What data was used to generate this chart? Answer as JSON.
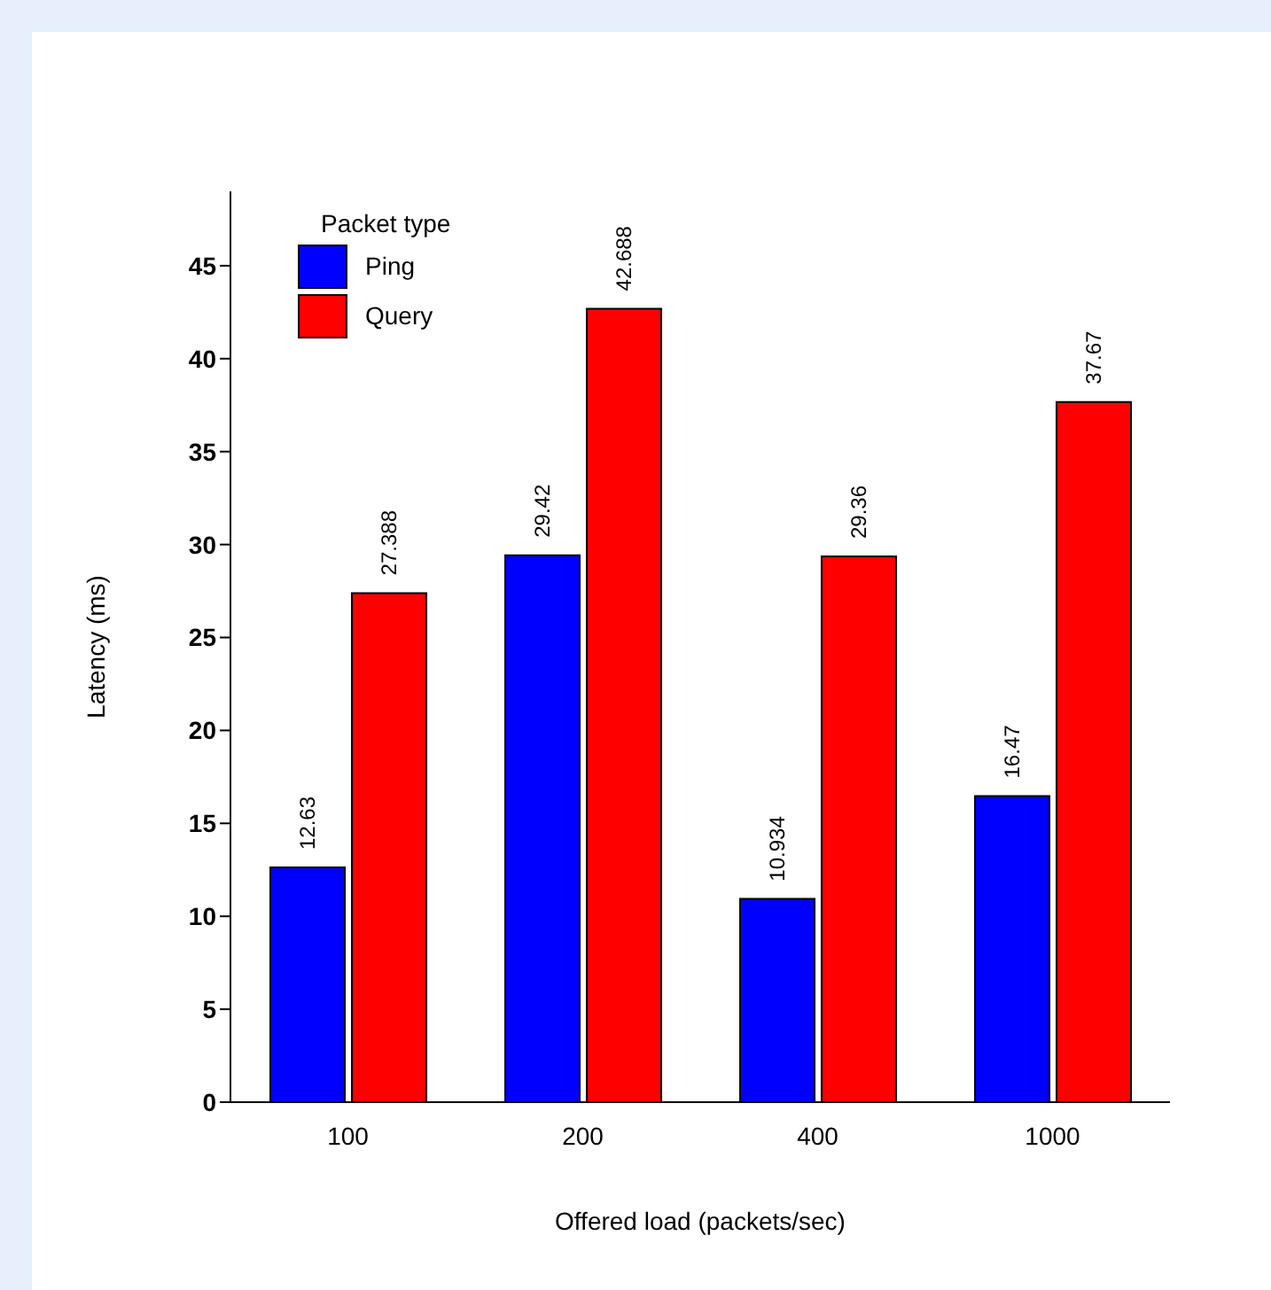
{
  "chart_data": {
    "type": "bar",
    "xlabel": "Offered load (packets/sec)",
    "ylabel": "Latency (ms)",
    "legend_title": "Packet type",
    "categories": [
      "100",
      "200",
      "400",
      "1000"
    ],
    "series": [
      {
        "name": "Ping",
        "color": "#0000ff",
        "values": [
          12.63,
          29.42,
          10.934,
          16.47
        ]
      },
      {
        "name": "Query",
        "color": "#ff0000",
        "values": [
          27.388,
          42.688,
          29.36,
          37.67
        ]
      }
    ],
    "ylim": [
      0,
      49
    ],
    "yticks": [
      0,
      5,
      10,
      15,
      20,
      25,
      30,
      35,
      40,
      45
    ],
    "grid": false,
    "legend": "top left",
    "data_labels": true
  }
}
